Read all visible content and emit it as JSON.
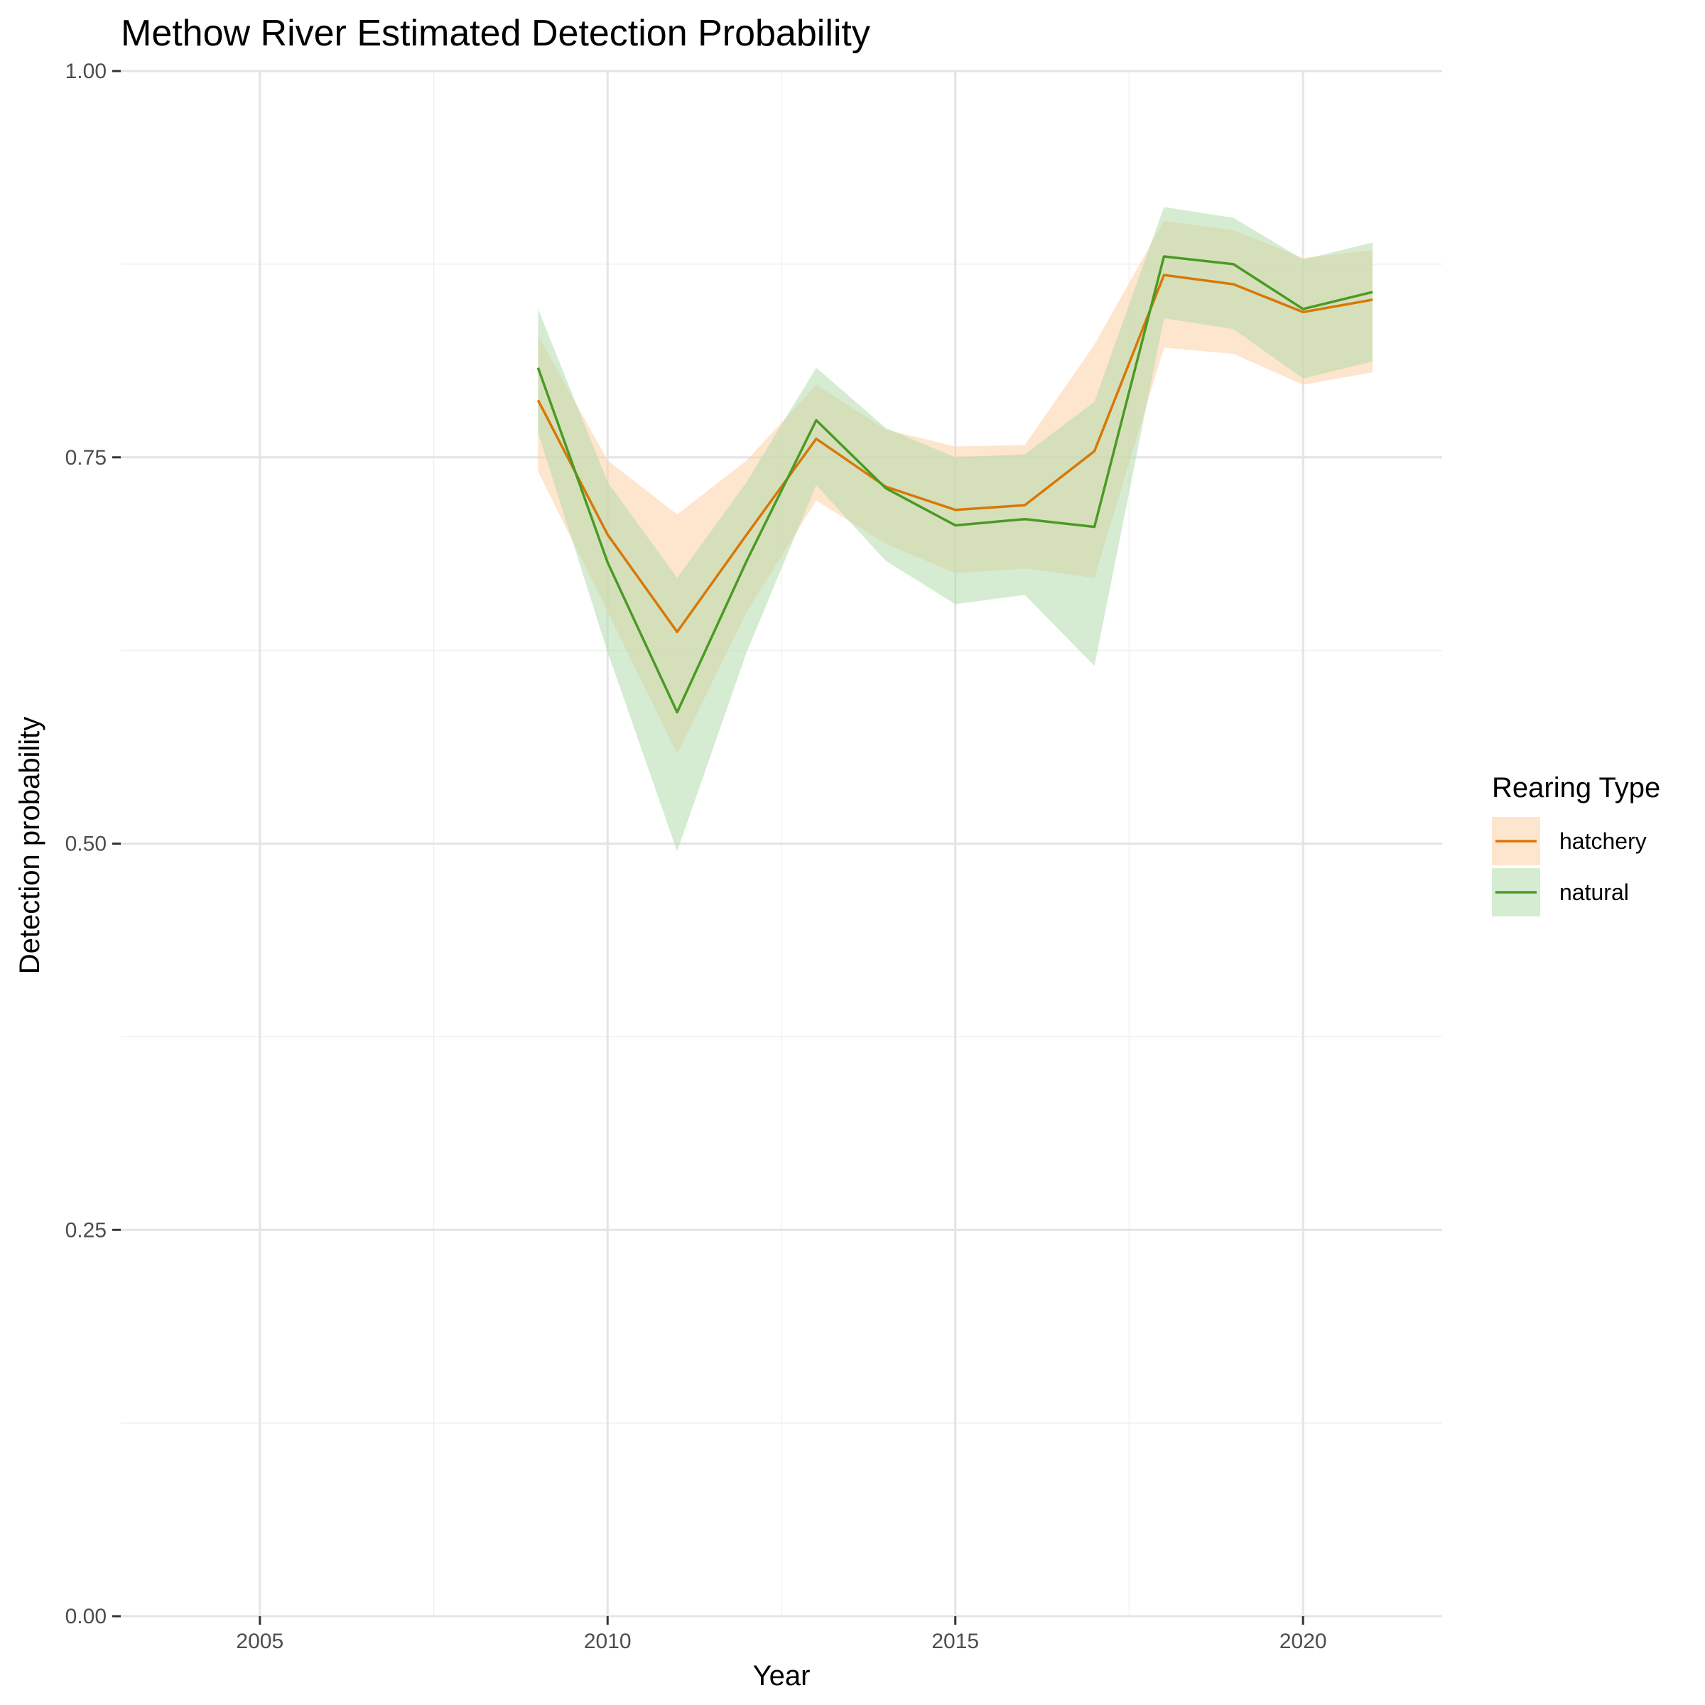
{
  "chart_data": {
    "type": "line",
    "title": "Methow River Estimated Detection Probability",
    "xlabel": "Year",
    "ylabel": "Detection probability",
    "xlim": [
      2003,
      2022
    ],
    "ylim": [
      0,
      1
    ],
    "x_ticks": [
      2005,
      2010,
      2015,
      2020
    ],
    "x_tick_labels": [
      "2005",
      "2010",
      "2015",
      "2020"
    ],
    "y_ticks": [
      0,
      0.25,
      0.5,
      0.75,
      1.0
    ],
    "y_tick_labels": [
      "0.00",
      "0.25",
      "0.50",
      "0.75",
      "1.00"
    ],
    "grid": true,
    "legend": {
      "title": "Rearing Type",
      "position": "right"
    },
    "x": [
      2009,
      2010,
      2011,
      2012,
      2013,
      2014,
      2015,
      2016,
      2017,
      2018,
      2019,
      2020,
      2021
    ],
    "series": [
      {
        "name": "hatchery",
        "line_color": "#D97706",
        "ribbon_color": "#FDCFA4",
        "values": [
          0.787,
          0.7,
          0.637,
          0.7,
          0.762,
          0.731,
          0.716,
          0.719,
          0.754,
          0.868,
          0.862,
          0.844,
          0.852
        ],
        "lower": [
          0.741,
          0.65,
          0.558,
          0.65,
          0.722,
          0.694,
          0.675,
          0.678,
          0.672,
          0.821,
          0.817,
          0.797,
          0.805
        ],
        "upper": [
          0.829,
          0.748,
          0.713,
          0.748,
          0.797,
          0.768,
          0.757,
          0.758,
          0.823,
          0.903,
          0.897,
          0.879,
          0.884
        ]
      },
      {
        "name": "natural",
        "line_color": "#4A9A24",
        "ribbon_color": "#B3DDAD",
        "values": [
          0.808,
          0.682,
          0.585,
          0.683,
          0.774,
          0.73,
          0.706,
          0.71,
          0.705,
          0.88,
          0.875,
          0.846,
          0.857
        ],
        "lower": [
          0.766,
          0.624,
          0.495,
          0.624,
          0.732,
          0.683,
          0.655,
          0.661,
          0.615,
          0.84,
          0.833,
          0.801,
          0.812
        ],
        "upper": [
          0.846,
          0.734,
          0.672,
          0.734,
          0.808,
          0.769,
          0.75,
          0.752,
          0.786,
          0.912,
          0.905,
          0.878,
          0.889
        ]
      }
    ]
  }
}
